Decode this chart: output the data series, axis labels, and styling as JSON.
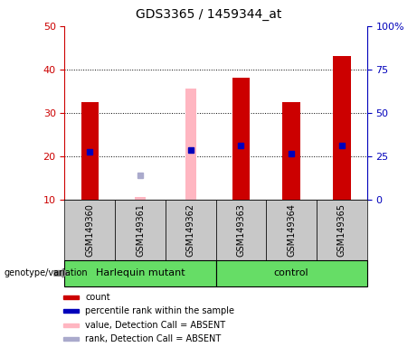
{
  "title": "GDS3365 / 1459344_at",
  "samples": [
    "GSM149360",
    "GSM149361",
    "GSM149362",
    "GSM149363",
    "GSM149364",
    "GSM149365"
  ],
  "red_bars": [
    32.5,
    null,
    null,
    38.0,
    32.5,
    43.0
  ],
  "red_bar_bottom": [
    10,
    null,
    null,
    10,
    10,
    10
  ],
  "pink_bars": [
    null,
    10.5,
    35.5,
    null,
    null,
    null
  ],
  "pink_bar_bottom": [
    null,
    10,
    10,
    null,
    null,
    null
  ],
  "blue_squares": [
    21.0,
    null,
    21.5,
    22.5,
    20.5,
    22.5
  ],
  "lavender_squares": [
    null,
    15.5,
    null,
    null,
    null,
    null
  ],
  "ylim": [
    10,
    50
  ],
  "yticks_left": [
    10,
    20,
    30,
    40,
    50
  ],
  "yticks_right": [
    0,
    25,
    50,
    75,
    100
  ],
  "grid_yticks": [
    20,
    30,
    40
  ],
  "bar_width": 0.35,
  "pink_bar_width": 0.22,
  "red_color": "#CC0000",
  "pink_color": "#FFB6C1",
  "blue_color": "#0000BB",
  "lavender_color": "#AAAACC",
  "bg_tick_area": "#C8C8C8",
  "group1_label": "Harlequin mutant",
  "group2_label": "control",
  "group_color": "#66DD66",
  "genotype_label": "genotype/variation",
  "legend_items": [
    {
      "label": "count",
      "color": "#CC0000"
    },
    {
      "label": "percentile rank within the sample",
      "color": "#0000BB"
    },
    {
      "label": "value, Detection Call = ABSENT",
      "color": "#FFB6C1"
    },
    {
      "label": "rank, Detection Call = ABSENT",
      "color": "#AAAACC"
    }
  ],
  "left_color": "#CC0000",
  "right_color": "#0000BB"
}
